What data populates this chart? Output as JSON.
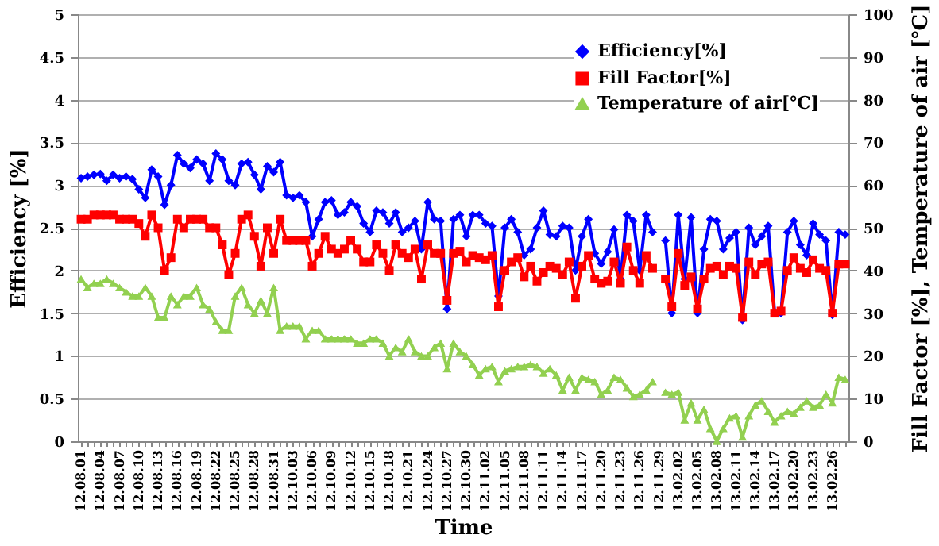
{
  "chart_data": {
    "type": "line",
    "xlabel": "Time",
    "ylabel": "Efficiency [%]",
    "y2label": "Fill Factor [%],  Temperature of air [℃]",
    "categories": [
      "12.08.01",
      null,
      null,
      "12.08.04",
      null,
      null,
      "12.08.07",
      null,
      null,
      "12.08.10",
      null,
      null,
      "12.08.13",
      null,
      null,
      "12.08.16",
      null,
      null,
      "12.08.19",
      null,
      null,
      "12.08.22",
      null,
      null,
      "12.08.25",
      null,
      null,
      "12.08.28",
      null,
      null,
      "12.08.31",
      null,
      null,
      "12.10.03",
      null,
      null,
      "12.10.06",
      null,
      null,
      "12.10.09",
      null,
      null,
      "12.10.12",
      null,
      null,
      "12.10.15",
      null,
      null,
      "12.10.18",
      null,
      null,
      "12.10.21",
      null,
      null,
      "12.10.24",
      null,
      null,
      "12.10.27",
      null,
      null,
      "12.10.30",
      null,
      null,
      "12.11.02",
      null,
      null,
      "12.11.05",
      null,
      null,
      "12.11.08",
      null,
      null,
      "12.11.11",
      null,
      null,
      "12.11.14",
      null,
      null,
      "12.11.17",
      null,
      null,
      "12.11.20",
      null,
      null,
      "12.11.23",
      null,
      null,
      "12.11.26",
      null,
      null,
      "12.11.29",
      null,
      null,
      "13.02.02",
      null,
      null,
      "13.02.05",
      null,
      null,
      "13.02.08",
      null,
      null,
      "13.02.11",
      null,
      null,
      "13.02.14",
      null,
      null,
      "13.02.17",
      null,
      null,
      "13.02.20",
      null,
      null,
      "13.02.23",
      null,
      null,
      "13.02.26",
      null,
      null
    ],
    "series": [
      {
        "name": "Efficiency[%]",
        "color": "#0000ff",
        "marker": "diamond",
        "values": [
          3.08,
          3.1,
          3.12,
          3.13,
          3.05,
          3.12,
          3.08,
          3.1,
          3.07,
          2.95,
          2.85,
          3.18,
          3.1,
          2.77,
          3.0,
          3.35,
          3.25,
          3.2,
          3.3,
          3.25,
          3.05,
          3.37,
          3.3,
          3.05,
          3.0,
          3.25,
          3.27,
          3.12,
          2.95,
          3.22,
          3.15,
          3.27,
          2.88,
          2.85,
          2.88,
          2.8,
          2.4,
          2.6,
          2.8,
          2.82,
          2.65,
          2.68,
          2.8,
          2.75,
          2.55,
          2.45,
          2.7,
          2.68,
          2.55,
          2.68,
          2.45,
          2.5,
          2.58,
          2.25,
          2.8,
          2.6,
          2.58,
          1.55,
          2.6,
          2.65,
          2.4,
          2.65,
          2.65,
          2.55,
          2.52,
          1.7,
          2.5,
          2.6,
          2.45,
          2.18,
          2.25,
          2.5,
          2.7,
          2.42,
          2.4,
          2.52,
          2.5,
          2.0,
          2.4,
          2.6,
          2.2,
          2.08,
          2.22,
          2.48,
          1.9,
          2.65,
          2.58,
          2.0,
          2.65,
          2.45,
          null,
          2.35,
          1.5,
          2.65,
          1.9,
          2.62,
          1.5,
          2.25,
          2.6,
          2.58,
          2.25,
          2.38,
          2.45,
          1.42,
          2.5,
          2.3,
          2.4,
          2.52,
          1.5,
          1.5,
          2.45,
          2.58,
          2.3,
          2.18,
          2.55,
          2.42,
          2.35,
          1.48,
          2.45,
          2.42
        ]
      },
      {
        "name": "Fill Factor[%]",
        "color": "#ff0000",
        "marker": "square",
        "axis": "y2",
        "values": [
          52,
          52,
          53,
          53,
          53,
          53,
          52,
          52,
          52,
          51,
          48,
          53,
          50,
          40,
          43,
          52,
          50,
          52,
          52,
          52,
          50,
          50,
          46,
          39,
          44,
          52,
          53,
          48,
          41,
          50,
          44,
          52,
          47,
          47,
          47,
          47,
          41,
          44,
          48,
          45,
          44,
          45,
          47,
          45,
          42,
          42,
          46,
          44,
          40,
          46,
          44,
          43,
          45,
          38,
          46,
          44,
          44,
          33,
          44,
          44.5,
          42,
          43.5,
          43,
          42.5,
          43.5,
          31.5,
          40,
          42,
          43,
          38.5,
          41,
          37.5,
          39.5,
          41,
          40.5,
          39,
          42,
          33.5,
          41,
          43.5,
          38,
          37,
          37.5,
          42,
          37,
          45.5,
          40,
          37,
          43.5,
          40.5,
          null,
          38,
          31.5,
          44,
          36.5,
          38.5,
          31,
          38,
          40.5,
          41,
          39,
          41,
          40.5,
          29,
          42,
          39,
          41.5,
          42,
          30,
          30.5,
          40,
          43,
          40.5,
          39.5,
          42.5,
          40.5,
          40,
          30,
          41.5,
          41.5
        ]
      },
      {
        "name": "Temperature of air[℃]",
        "color": "#92d050",
        "marker": "triangle",
        "axis": "y2",
        "values": [
          38,
          36,
          37,
          37,
          38,
          37,
          36,
          35,
          34,
          34,
          36,
          34,
          29,
          29,
          34,
          32,
          34,
          34,
          36,
          32,
          31,
          28,
          26,
          26,
          34,
          36,
          32,
          30,
          33,
          30,
          36,
          26,
          27,
          27,
          27,
          24,
          26,
          26,
          24,
          24,
          24,
          24,
          24,
          23,
          23,
          24,
          24,
          23,
          20,
          22,
          21,
          24,
          21,
          20,
          20,
          22,
          23,
          17,
          23,
          21,
          20,
          18,
          15.5,
          17,
          17.5,
          14,
          16.5,
          17,
          17.5,
          17.5,
          18,
          17.5,
          16,
          17,
          15.5,
          12,
          15,
          12,
          15,
          14.5,
          14,
          11,
          12,
          15,
          14.5,
          12.5,
          10.5,
          11,
          12,
          14,
          null,
          11.5,
          11,
          11.5,
          5,
          9,
          5,
          7.5,
          3,
          0,
          3,
          5.5,
          6,
          1,
          6,
          8.5,
          9.5,
          7,
          4.5,
          6,
          7,
          6.5,
          8,
          9.5,
          8,
          8.5,
          11,
          9,
          15,
          14.5
        ]
      }
    ],
    "ylim": [
      0,
      5
    ],
    "yticks": [
      0,
      0.5,
      1,
      1.5,
      2,
      2.5,
      3,
      3.5,
      4,
      4.5,
      5
    ],
    "y2lim": [
      0,
      100
    ],
    "y2ticks": [
      0,
      10,
      20,
      30,
      40,
      50,
      60,
      70,
      80,
      90,
      100
    ],
    "grid": "y",
    "legend": "top right",
    "line_style": "solid"
  }
}
